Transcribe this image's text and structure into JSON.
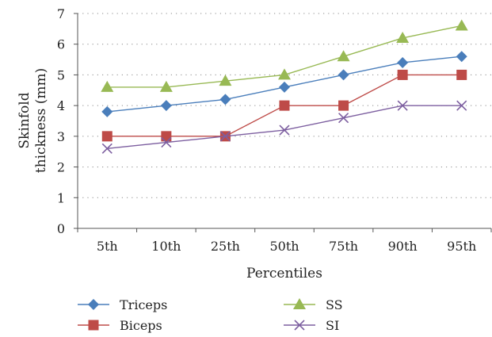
{
  "chart_data": {
    "type": "line",
    "categories": [
      "5th",
      "10th",
      "25th",
      "50th",
      "75th",
      "90th",
      "95th"
    ],
    "xlabel": "Percentiles",
    "ylabel_lines": [
      "Skinfold",
      "thickness (mm)"
    ],
    "ylim": [
      0,
      7
    ],
    "yticks": [
      "0",
      "1",
      "2",
      "3",
      "4",
      "5",
      "6",
      "7"
    ],
    "grid": "horizontal-dotted",
    "legend_position": "bottom",
    "series": [
      {
        "name": "Triceps",
        "color": "#4a7ebb",
        "marker": "diamond",
        "values": [
          3.8,
          4.0,
          4.2,
          4.6,
          5.0,
          5.4,
          5.6
        ]
      },
      {
        "name": "Biceps",
        "color": "#be4b48",
        "marker": "square",
        "values": [
          3.0,
          3.0,
          3.0,
          4.0,
          4.0,
          5.0,
          5.0
        ]
      },
      {
        "name": "SS",
        "color": "#98b954",
        "marker": "triangle",
        "values": [
          4.6,
          4.6,
          4.8,
          5.0,
          5.6,
          6.2,
          6.6
        ]
      },
      {
        "name": "SI",
        "color": "#7d5fa0",
        "marker": "x",
        "values": [
          2.6,
          2.8,
          3.0,
          3.2,
          3.6,
          4.0,
          4.0
        ]
      }
    ]
  }
}
